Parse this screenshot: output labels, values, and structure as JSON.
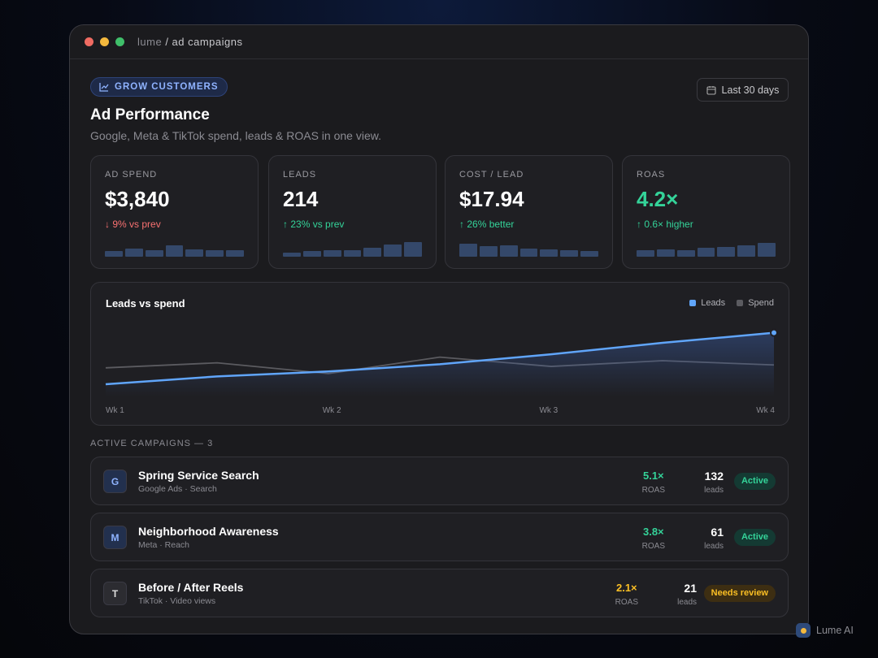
{
  "window": {
    "brand": "lume",
    "path": "/ ad campaigns"
  },
  "header": {
    "badge": "GROW CUSTOMERS",
    "title": "Ad Performance",
    "subtitle": "Google, Meta & TikTok spend, leads & ROAS in one view.",
    "date_range": "Last 30 days"
  },
  "kpis": [
    {
      "label": "AD SPEND",
      "value": "$3,840",
      "delta": "9% vs prev",
      "trend": "down",
      "highlight": false,
      "sparkline": [
        7,
        10,
        8,
        14,
        9,
        8,
        8
      ]
    },
    {
      "label": "LEADS",
      "value": "214",
      "delta": "23% vs prev",
      "trend": "up",
      "highlight": false,
      "sparkline": [
        5,
        7,
        8,
        8,
        11,
        15,
        18
      ]
    },
    {
      "label": "COST / LEAD",
      "value": "$17.94",
      "delta": "26% better",
      "trend": "up",
      "highlight": false,
      "sparkline": [
        16,
        13,
        14,
        10,
        9,
        8,
        7
      ]
    },
    {
      "label": "ROAS",
      "value": "4.2×",
      "delta": "0.6× higher",
      "trend": "up",
      "highlight": true,
      "sparkline": [
        8,
        9,
        8,
        11,
        12,
        14,
        17
      ]
    }
  ],
  "chart": {
    "type": "line",
    "title": "Leads vs spend",
    "x_labels": [
      "Wk 1",
      "Wk 2",
      "Wk 3",
      "Wk 4"
    ],
    "ylim": [
      0,
      100
    ],
    "series": [
      {
        "name": "Leads",
        "color": "#60a5fa",
        "values": [
          17,
          28,
          35,
          45,
          59,
          75,
          89
        ]
      },
      {
        "name": "Spend",
        "color": "#5b5b60",
        "values": [
          40,
          47,
          32,
          55,
          42,
          50,
          44
        ]
      }
    ]
  },
  "campaigns": {
    "heading": "ACTIVE CAMPAIGNS — 3",
    "rows": [
      {
        "icon": "G",
        "name": "Spring Service Search",
        "meta": "Google Ads · Search",
        "roas": "5.1×",
        "roas_label": "ROAS",
        "leads": "132",
        "leads_label": "leads",
        "status": "Active",
        "tone": "green"
      },
      {
        "icon": "M",
        "name": "Neighborhood Awareness",
        "meta": "Meta · Reach",
        "roas": "3.8×",
        "roas_label": "ROAS",
        "leads": "61",
        "leads_label": "leads",
        "status": "Active",
        "tone": "green"
      },
      {
        "icon": "T",
        "name": "Before / After Reels",
        "meta": "TikTok · Video views",
        "roas": "2.1×",
        "roas_label": "ROAS",
        "leads": "21",
        "leads_label": "leads",
        "status": "Needs review",
        "tone": "amber"
      }
    ]
  },
  "footer": {
    "brand": "Lume AI"
  }
}
